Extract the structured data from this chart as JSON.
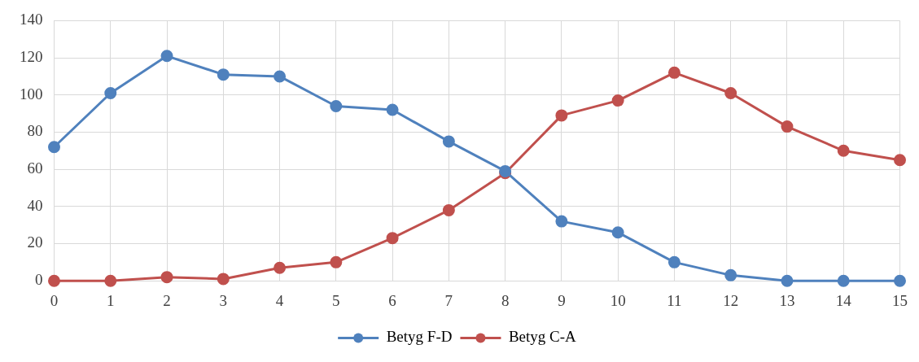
{
  "chart_data": {
    "type": "line",
    "x": [
      0,
      1,
      2,
      3,
      4,
      5,
      6,
      7,
      8,
      9,
      10,
      11,
      12,
      13,
      14,
      15
    ],
    "xlim": [
      0,
      15
    ],
    "xticks": [
      0,
      1,
      2,
      3,
      4,
      5,
      6,
      7,
      8,
      9,
      10,
      11,
      12,
      13,
      14,
      15
    ],
    "ylim": [
      0,
      140
    ],
    "yticks": [
      0,
      20,
      40,
      60,
      80,
      100,
      120,
      140
    ],
    "grid": true,
    "legend": "bottom",
    "marker": "circle",
    "line_style": "solid",
    "series": [
      {
        "name": "Betyg F-D",
        "color": "#4f81bd",
        "values": [
          72,
          101,
          121,
          111,
          110,
          94,
          92,
          75,
          59,
          32,
          26,
          10,
          3,
          0,
          0,
          0
        ]
      },
      {
        "name": "Betyg C-A",
        "color": "#c0504d",
        "values": [
          0,
          0,
          2,
          1,
          7,
          10,
          23,
          38,
          58,
          89,
          97,
          112,
          101,
          83,
          70,
          65
        ]
      }
    ]
  }
}
